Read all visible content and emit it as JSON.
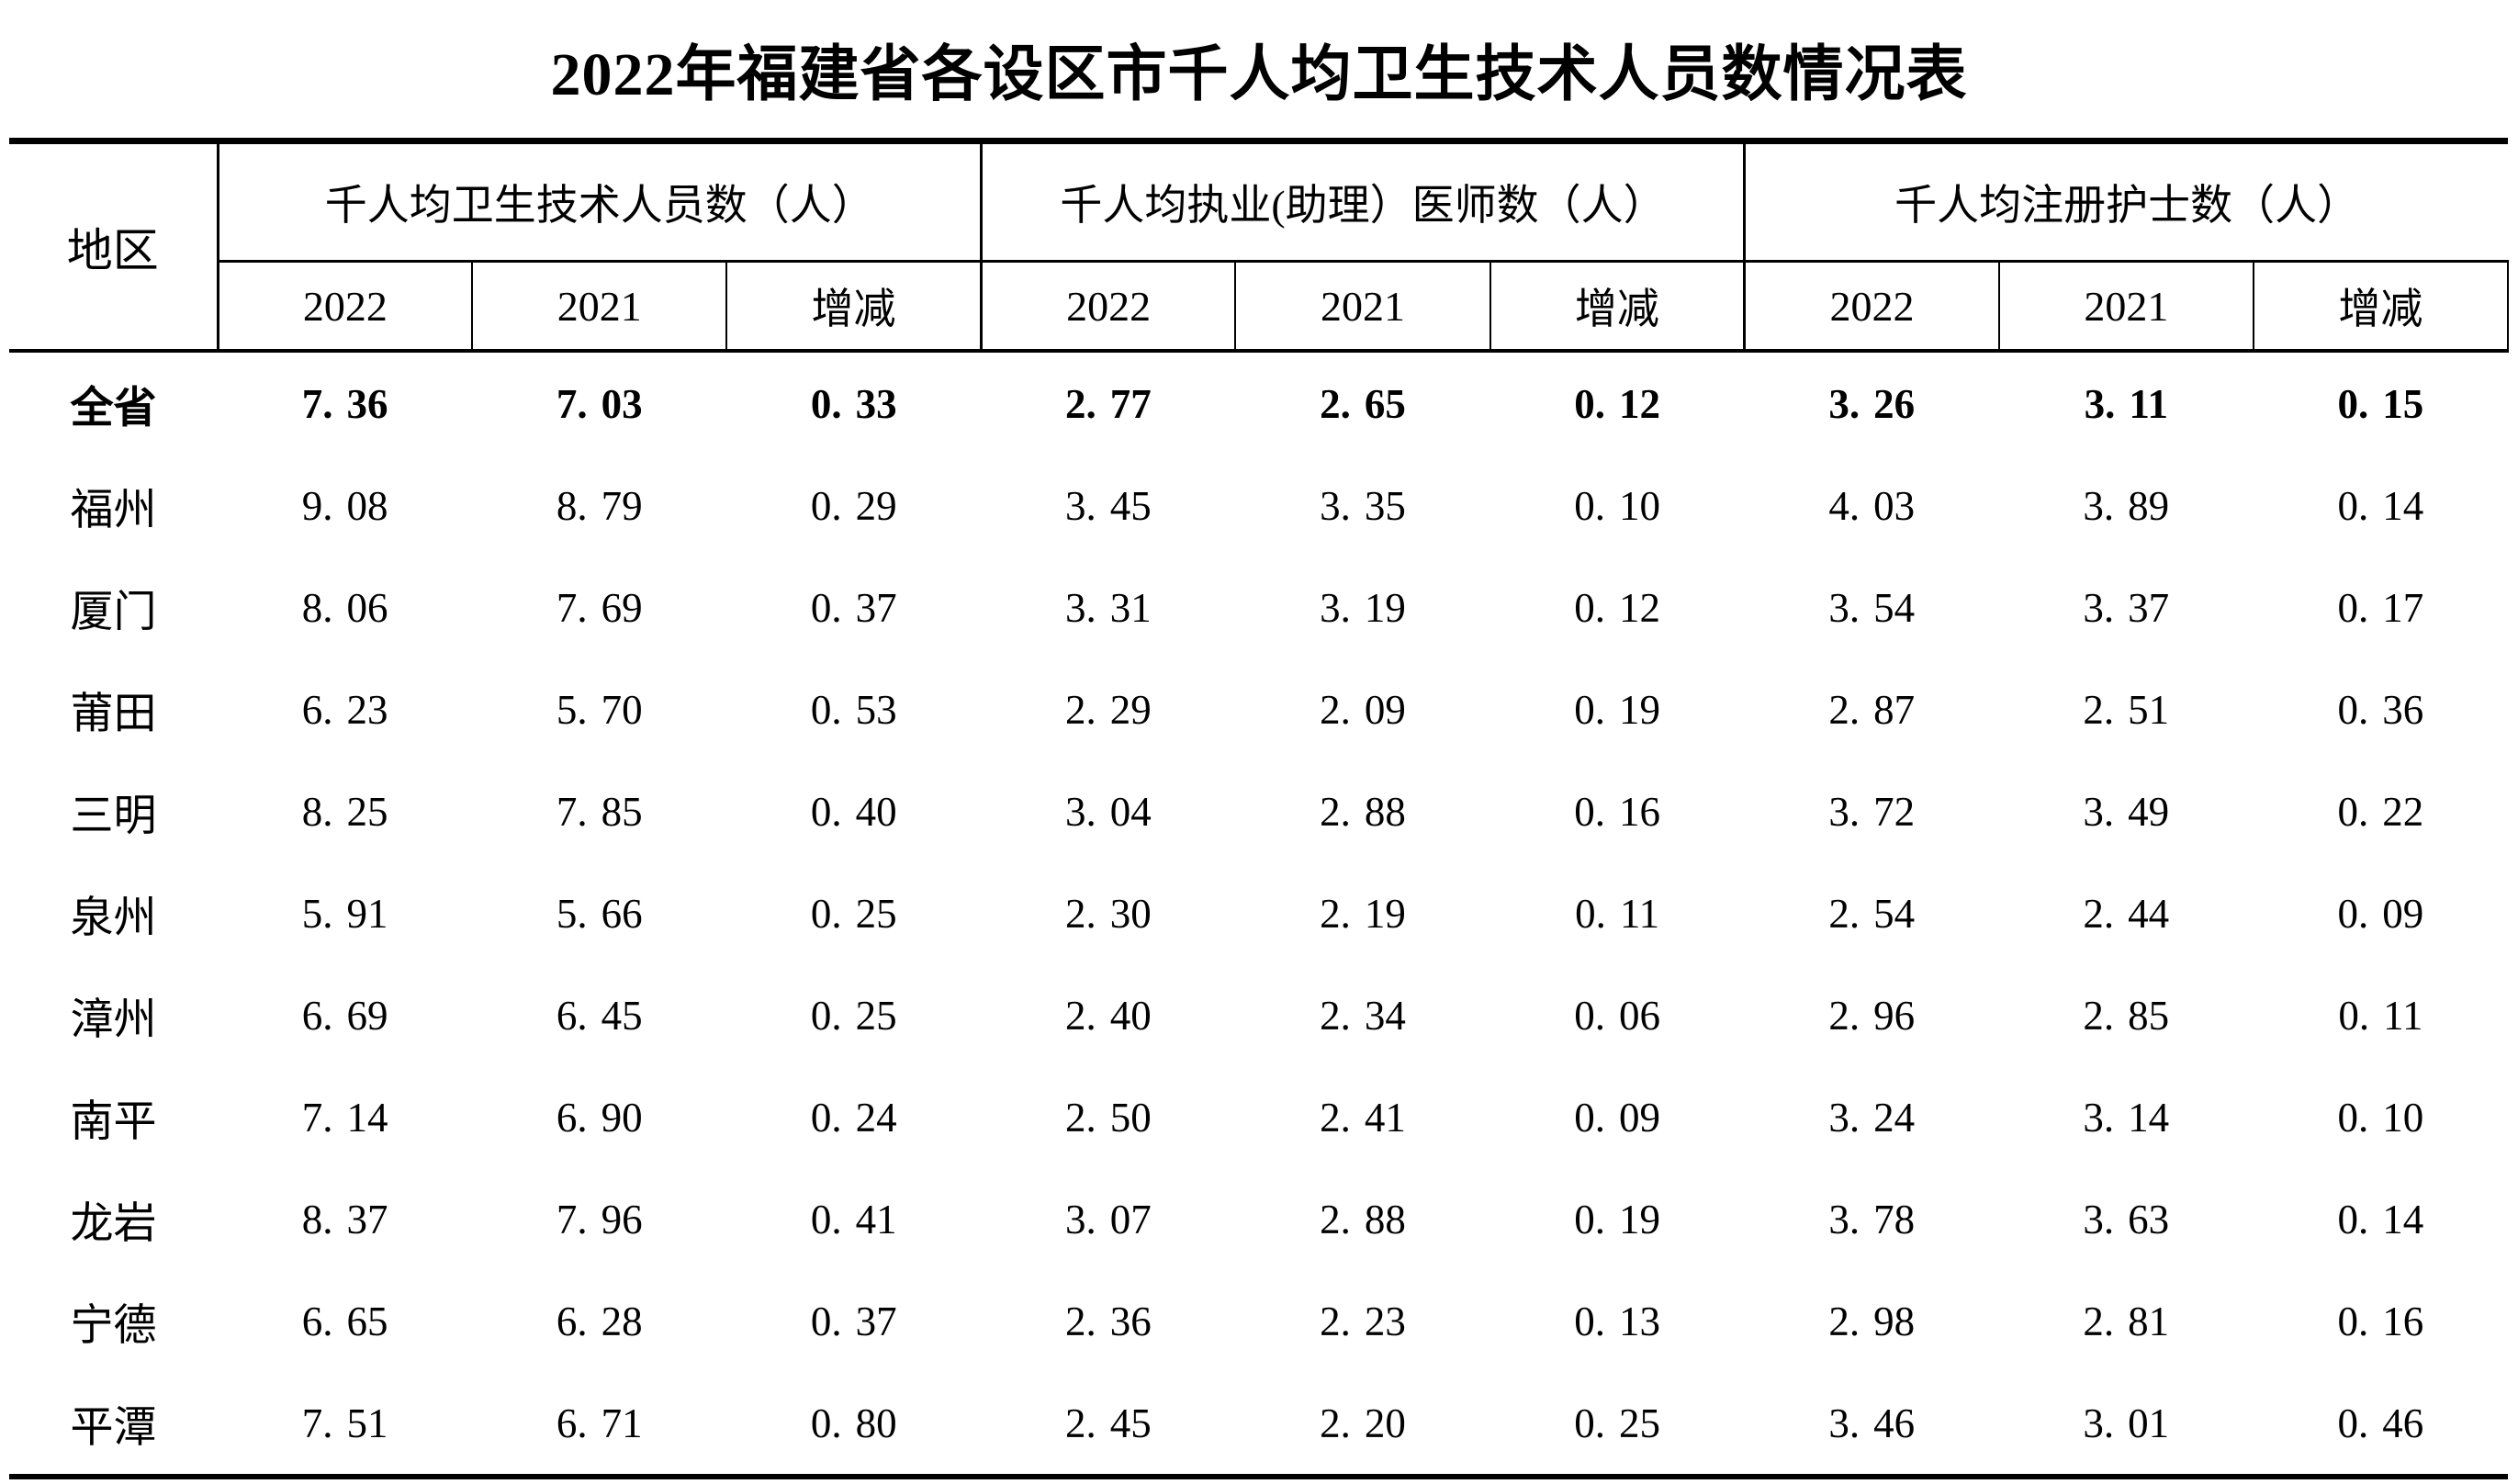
{
  "title": "2022年福建省各设区市千人均卫生技术人员数情况表",
  "table": {
    "region_header": "地区",
    "groups": [
      {
        "label": "千人均卫生技术人员数（人）"
      },
      {
        "label": "千人均执业(助理）医师数（人）"
      },
      {
        "label": "千人均注册护士数（人）"
      }
    ],
    "sub_headers": [
      "2022",
      "2021",
      "增减"
    ],
    "rows": [
      {
        "region": "全省",
        "bold": true,
        "values": [
          "7.36",
          "7.03",
          "0.33",
          "2.77",
          "2.65",
          "0.12",
          "3.26",
          "3.11",
          "0.15"
        ]
      },
      {
        "region": "福州",
        "bold": false,
        "values": [
          "9.08",
          "8.79",
          "0.29",
          "3.45",
          "3.35",
          "0.10",
          "4.03",
          "3.89",
          "0.14"
        ]
      },
      {
        "region": "厦门",
        "bold": false,
        "values": [
          "8.06",
          "7.69",
          "0.37",
          "3.31",
          "3.19",
          "0.12",
          "3.54",
          "3.37",
          "0.17"
        ]
      },
      {
        "region": "莆田",
        "bold": false,
        "values": [
          "6.23",
          "5.70",
          "0.53",
          "2.29",
          "2.09",
          "0.19",
          "2.87",
          "2.51",
          "0.36"
        ]
      },
      {
        "region": "三明",
        "bold": false,
        "values": [
          "8.25",
          "7.85",
          "0.40",
          "3.04",
          "2.88",
          "0.16",
          "3.72",
          "3.49",
          "0.22"
        ]
      },
      {
        "region": "泉州",
        "bold": false,
        "values": [
          "5.91",
          "5.66",
          "0.25",
          "2.30",
          "2.19",
          "0.11",
          "2.54",
          "2.44",
          "0.09"
        ]
      },
      {
        "region": "漳州",
        "bold": false,
        "values": [
          "6.69",
          "6.45",
          "0.25",
          "2.40",
          "2.34",
          "0.06",
          "2.96",
          "2.85",
          "0.11"
        ]
      },
      {
        "region": "南平",
        "bold": false,
        "values": [
          "7.14",
          "6.90",
          "0.24",
          "2.50",
          "2.41",
          "0.09",
          "3.24",
          "3.14",
          "0.10"
        ]
      },
      {
        "region": "龙岩",
        "bold": false,
        "values": [
          "8.37",
          "7.96",
          "0.41",
          "3.07",
          "2.88",
          "0.19",
          "3.78",
          "3.63",
          "0.14"
        ]
      },
      {
        "region": "宁德",
        "bold": false,
        "values": [
          "6.65",
          "6.28",
          "0.37",
          "2.36",
          "2.23",
          "0.13",
          "2.98",
          "2.81",
          "0.16"
        ]
      },
      {
        "region": "平潭",
        "bold": false,
        "values": [
          "7.51",
          "6.71",
          "0.80",
          "2.45",
          "2.20",
          "0.25",
          "3.46",
          "3.01",
          "0.46"
        ]
      }
    ]
  }
}
